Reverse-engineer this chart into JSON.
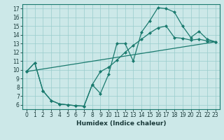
{
  "xlabel": "Humidex (Indice chaleur)",
  "xlim": [
    -0.5,
    23.5
  ],
  "ylim": [
    5.5,
    17.5
  ],
  "xticks": [
    0,
    1,
    2,
    3,
    4,
    5,
    6,
    7,
    8,
    9,
    10,
    11,
    12,
    13,
    14,
    15,
    16,
    17,
    18,
    19,
    20,
    21,
    22,
    23
  ],
  "yticks": [
    6,
    7,
    8,
    9,
    10,
    11,
    12,
    13,
    14,
    15,
    16,
    17
  ],
  "line_color": "#1a7a6e",
  "bg_color": "#cce8e8",
  "grid_color": "#99cccc",
  "line1_x": [
    0,
    1,
    2,
    3,
    4,
    5,
    6,
    7,
    8,
    9,
    10,
    11,
    12,
    13,
    14,
    15,
    16,
    17,
    18,
    19,
    20,
    21,
    22,
    23
  ],
  "line1_y": [
    9.8,
    10.8,
    7.6,
    6.5,
    6.1,
    6.0,
    5.9,
    5.85,
    8.3,
    7.3,
    9.5,
    13.0,
    13.0,
    11.0,
    14.3,
    15.6,
    17.1,
    17.0,
    16.6,
    15.0,
    13.7,
    14.4,
    13.5,
    13.2
  ],
  "line2_x": [
    0,
    1,
    2,
    3,
    4,
    5,
    6,
    7,
    8,
    9,
    10,
    11,
    12,
    13,
    14,
    15,
    16,
    17,
    18,
    19,
    20,
    21,
    22,
    23
  ],
  "line2_y": [
    9.8,
    10.8,
    7.6,
    6.5,
    6.1,
    6.0,
    5.9,
    5.85,
    8.3,
    9.8,
    10.3,
    11.1,
    12.0,
    12.8,
    13.5,
    14.2,
    14.8,
    15.0,
    13.7,
    13.6,
    13.4,
    13.5,
    13.3,
    13.2
  ],
  "line3_x": [
    0,
    23
  ],
  "line3_y": [
    9.8,
    13.2
  ],
  "marker": "D",
  "markersize": 2.0,
  "linewidth": 0.9,
  "tick_fontsize": 5.5,
  "xlabel_fontsize": 6.5
}
